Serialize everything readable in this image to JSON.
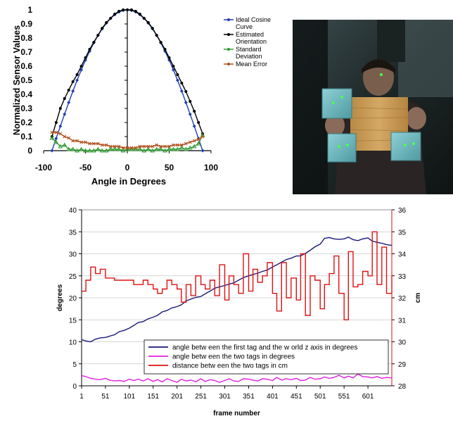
{
  "photo": {
    "description_icon": "person-holding-board-with-tags-photo"
  },
  "chart_data": [
    {
      "type": "line",
      "title": "",
      "xlabel": "Angle in Degrees",
      "ylabel": "Normalized Sensor Values",
      "xlim": [
        -100,
        100
      ],
      "ylim": [
        0,
        1
      ],
      "xticks": [
        -100,
        -50,
        0,
        50,
        100
      ],
      "xtick_labels": [
        "-100",
        "-50",
        "0",
        "50",
        "100"
      ],
      "yticks": [
        0,
        0.1,
        0.2,
        0.3,
        0.4,
        0.5,
        0.6,
        0.7,
        0.8,
        0.9,
        1
      ],
      "ytick_labels": [
        "0",
        "0.1",
        "0.2",
        "0.3",
        "0.4",
        "0.5",
        "0.6",
        "0.7",
        "0.8",
        "0.9",
        "1"
      ],
      "grid": false,
      "legend_position": "top-right",
      "x": [
        -90,
        -85,
        -80,
        -75,
        -70,
        -65,
        -60,
        -55,
        -50,
        -45,
        -40,
        -35,
        -30,
        -25,
        -20,
        -15,
        -10,
        -5,
        0,
        5,
        10,
        15,
        20,
        25,
        30,
        35,
        40,
        45,
        50,
        55,
        60,
        65,
        70,
        75,
        80,
        85,
        90
      ],
      "series": [
        {
          "name": "Ideal Cosine Curve",
          "color": "#1f3fb0",
          "marker": "diamond",
          "values": [
            0.0,
            0.087,
            0.174,
            0.259,
            0.342,
            0.423,
            0.5,
            0.574,
            0.643,
            0.707,
            0.766,
            0.819,
            0.866,
            0.906,
            0.94,
            0.966,
            0.985,
            0.996,
            1.0,
            0.996,
            0.985,
            0.966,
            0.94,
            0.906,
            0.866,
            0.819,
            0.766,
            0.707,
            0.643,
            0.574,
            0.5,
            0.423,
            0.342,
            0.259,
            0.174,
            0.087,
            0.0
          ]
        },
        {
          "name": "Estimated Orientation",
          "color": "#000000",
          "marker": "circle",
          "values": [
            0.1,
            0.2,
            0.3,
            0.37,
            0.43,
            0.49,
            0.54,
            0.6,
            0.66,
            0.72,
            0.77,
            0.82,
            0.87,
            0.91,
            0.94,
            0.97,
            0.99,
            1.0,
            1.0,
            1.0,
            0.99,
            0.97,
            0.94,
            0.91,
            0.87,
            0.82,
            0.77,
            0.72,
            0.66,
            0.6,
            0.54,
            0.48,
            0.42,
            0.35,
            0.28,
            0.2,
            0.12
          ]
        },
        {
          "name": "Standard Deviation",
          "color": "#2f9a2f",
          "marker": "triangle",
          "values": [
            0.09,
            0.06,
            0.03,
            0.04,
            0.01,
            0.01,
            0.0,
            0.01,
            0.0,
            0.0,
            0.0,
            0.01,
            0.0,
            0.0,
            0.01,
            0.01,
            0.01,
            0.0,
            0.01,
            0.01,
            0.01,
            0.01,
            0.0,
            0.01,
            0.0,
            0.01,
            0.01,
            0.0,
            0.01,
            0.01,
            0.01,
            0.02,
            0.01,
            0.02,
            0.03,
            0.05,
            0.11
          ]
        },
        {
          "name": "Mean Error",
          "color": "#b3501c",
          "marker": "x",
          "values": [
            0.13,
            0.13,
            0.12,
            0.1,
            0.09,
            0.07,
            0.07,
            0.06,
            0.06,
            0.05,
            0.05,
            0.05,
            0.04,
            0.04,
            0.03,
            0.03,
            0.03,
            0.02,
            0.02,
            0.02,
            0.02,
            0.03,
            0.03,
            0.03,
            0.03,
            0.04,
            0.03,
            0.03,
            0.03,
            0.04,
            0.04,
            0.04,
            0.05,
            0.06,
            0.07,
            0.08,
            0.1
          ]
        }
      ]
    },
    {
      "type": "line",
      "title": "",
      "xlabel": "frame number",
      "ylabel": "degrees",
      "y2label": "cm",
      "xlim": [
        1,
        651
      ],
      "ylim": [
        0,
        40
      ],
      "y2lim": [
        28,
        36
      ],
      "xticks": [
        1,
        51,
        101,
        151,
        201,
        251,
        301,
        351,
        401,
        451,
        501,
        551,
        601
      ],
      "xtick_labels": [
        "1",
        "51",
        "101",
        "151",
        "201",
        "251",
        "301",
        "351",
        "401",
        "451",
        "501",
        "551",
        "601"
      ],
      "yticks": [
        0,
        5,
        10,
        15,
        20,
        25,
        30,
        35,
        40
      ],
      "ytick_labels": [
        "0",
        "5",
        "10",
        "15",
        "20",
        "25",
        "30",
        "35",
        "40"
      ],
      "y2ticks": [
        28,
        29,
        30,
        31,
        32,
        33,
        34,
        35,
        36
      ],
      "y2tick_labels": [
        "28",
        "29",
        "30",
        "31",
        "32",
        "33",
        "34",
        "35",
        "36"
      ],
      "grid": true,
      "legend_position": "bottom-right",
      "series": [
        {
          "name": "angle betw een the first tag and the w orld z axis in degrees",
          "color": "#1a1a7a",
          "axis": "left",
          "x": [
            1,
            10,
            20,
            30,
            40,
            51,
            60,
            70,
            80,
            90,
            101,
            110,
            120,
            130,
            140,
            151,
            160,
            170,
            180,
            190,
            201,
            210,
            220,
            230,
            240,
            251,
            260,
            270,
            280,
            290,
            301,
            310,
            320,
            330,
            340,
            351,
            360,
            370,
            380,
            390,
            401,
            410,
            420,
            430,
            440,
            451,
            460,
            470,
            480,
            490,
            501,
            510,
            520,
            530,
            540,
            551,
            560,
            570,
            580,
            590,
            601,
            610,
            620,
            630,
            640,
            651
          ],
          "values": [
            10.5,
            10.2,
            10.0,
            10.6,
            10.9,
            11.0,
            11.3,
            11.6,
            12.3,
            12.6,
            13.1,
            13.7,
            14.4,
            14.6,
            15.2,
            15.6,
            16.0,
            16.8,
            17.1,
            17.7,
            18.0,
            18.4,
            19.3,
            19.7,
            20.1,
            20.3,
            20.9,
            21.5,
            22.2,
            22.5,
            22.8,
            23.1,
            23.4,
            24.0,
            24.6,
            25.0,
            25.3,
            25.6,
            26.0,
            26.3,
            27.0,
            27.5,
            28.1,
            28.7,
            29.0,
            29.5,
            29.5,
            30.1,
            30.8,
            31.6,
            32.2,
            33.5,
            33.7,
            33.4,
            33.3,
            33.4,
            33.8,
            33.2,
            33.0,
            33.4,
            33.6,
            32.9,
            32.6,
            32.4,
            32.1,
            31.9
          ]
        },
        {
          "name": "angle betw een the two tags in degrees",
          "color": "#e020e0",
          "axis": "left",
          "x": [
            1,
            10,
            20,
            30,
            40,
            51,
            60,
            70,
            80,
            90,
            101,
            110,
            120,
            130,
            140,
            151,
            160,
            170,
            180,
            190,
            201,
            210,
            220,
            230,
            240,
            251,
            260,
            270,
            280,
            290,
            301,
            310,
            320,
            330,
            340,
            351,
            360,
            370,
            380,
            390,
            401,
            410,
            420,
            430,
            440,
            451,
            460,
            470,
            480,
            490,
            501,
            510,
            520,
            530,
            540,
            551,
            560,
            570,
            580,
            590,
            601,
            610,
            620,
            630,
            640,
            651
          ],
          "values": [
            2.3,
            2.1,
            1.7,
            1.5,
            1.4,
            1.7,
            1.3,
            1.1,
            1.2,
            1.0,
            1.5,
            1.2,
            1.5,
            1.1,
            1.6,
            1.0,
            1.4,
            0.9,
            1.6,
            1.2,
            0.8,
            1.5,
            1.1,
            1.3,
            0.9,
            1.6,
            1.0,
            1.4,
            1.2,
            0.8,
            1.2,
            1.6,
            1.1,
            1.0,
            1.6,
            1.5,
            1.3,
            1.1,
            1.6,
            1.5,
            1.2,
            1.9,
            1.3,
            1.6,
            1.4,
            1.7,
            1.2,
            1.3,
            1.9,
            1.5,
            1.6,
            2.0,
            1.7,
            1.9,
            2.4,
            1.8,
            2.2,
            1.8,
            2.7,
            2.1,
            2.0,
            1.8,
            2.1,
            1.7,
            1.9,
            1.8
          ]
        },
        {
          "name": "distance betw een the two tags in cm",
          "color": "#e01010",
          "axis": "right",
          "x": [
            1,
            10,
            20,
            30,
            40,
            51,
            60,
            70,
            80,
            90,
            101,
            110,
            120,
            130,
            140,
            151,
            160,
            170,
            180,
            190,
            201,
            210,
            220,
            230,
            240,
            251,
            260,
            270,
            280,
            290,
            301,
            310,
            320,
            330,
            340,
            351,
            360,
            370,
            380,
            390,
            401,
            410,
            420,
            430,
            440,
            451,
            460,
            470,
            480,
            490,
            501,
            510,
            520,
            530,
            540,
            551,
            560,
            570,
            580,
            590,
            601,
            610,
            620,
            630,
            640,
            651
          ],
          "values": [
            32.3,
            32.8,
            33.4,
            33.1,
            33.3,
            32.9,
            32.9,
            32.8,
            32.8,
            32.8,
            32.8,
            32.6,
            32.6,
            32.8,
            32.6,
            32.4,
            32.2,
            32.4,
            32.8,
            32.6,
            32.4,
            31.8,
            32.6,
            32.1,
            33.0,
            32.6,
            32.4,
            32.8,
            32.1,
            33.5,
            31.9,
            33.0,
            32.6,
            32.2,
            34.0,
            32.3,
            33.3,
            32.7,
            33.0,
            33.6,
            32.2,
            31.4,
            33.6,
            32.0,
            32.9,
            31.9,
            34.0,
            31.2,
            33.0,
            32.8,
            31.5,
            32.6,
            33.1,
            33.9,
            32.2,
            31.0,
            34.1,
            32.5,
            32.6,
            33.2,
            33.0,
            35.0,
            32.6,
            34.3,
            32.2,
            33.0
          ]
        }
      ]
    }
  ]
}
